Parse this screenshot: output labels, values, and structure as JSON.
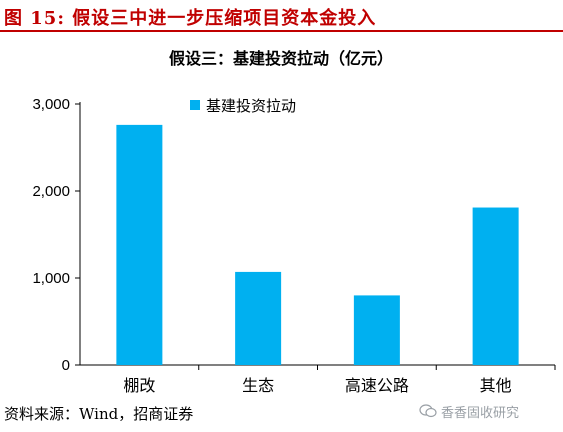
{
  "figure": {
    "title": "图 15: 假设三中进一步压缩项目资本金投入",
    "source": "资料来源：Wind，招商证券",
    "watermark": "香香固收研究"
  },
  "colors": {
    "accent": "#c00000",
    "bar": "#00b0f0"
  },
  "chart_data": {
    "type": "bar",
    "title": "假设三：基建投资拉动（亿元）",
    "categories": [
      "棚改",
      "生态",
      "高速公路",
      "其他"
    ],
    "series": [
      {
        "name": "基建投资拉动",
        "values": [
          2760,
          1070,
          800,
          1810
        ]
      }
    ],
    "ylim": [
      0,
      3000
    ],
    "yticks": [
      "0",
      "1,000",
      "2,000",
      "3,000"
    ],
    "ytick_values": [
      0,
      1000,
      2000,
      3000
    ],
    "xlabel": "",
    "ylabel": "",
    "grid": false,
    "legend_position": "top-left"
  }
}
